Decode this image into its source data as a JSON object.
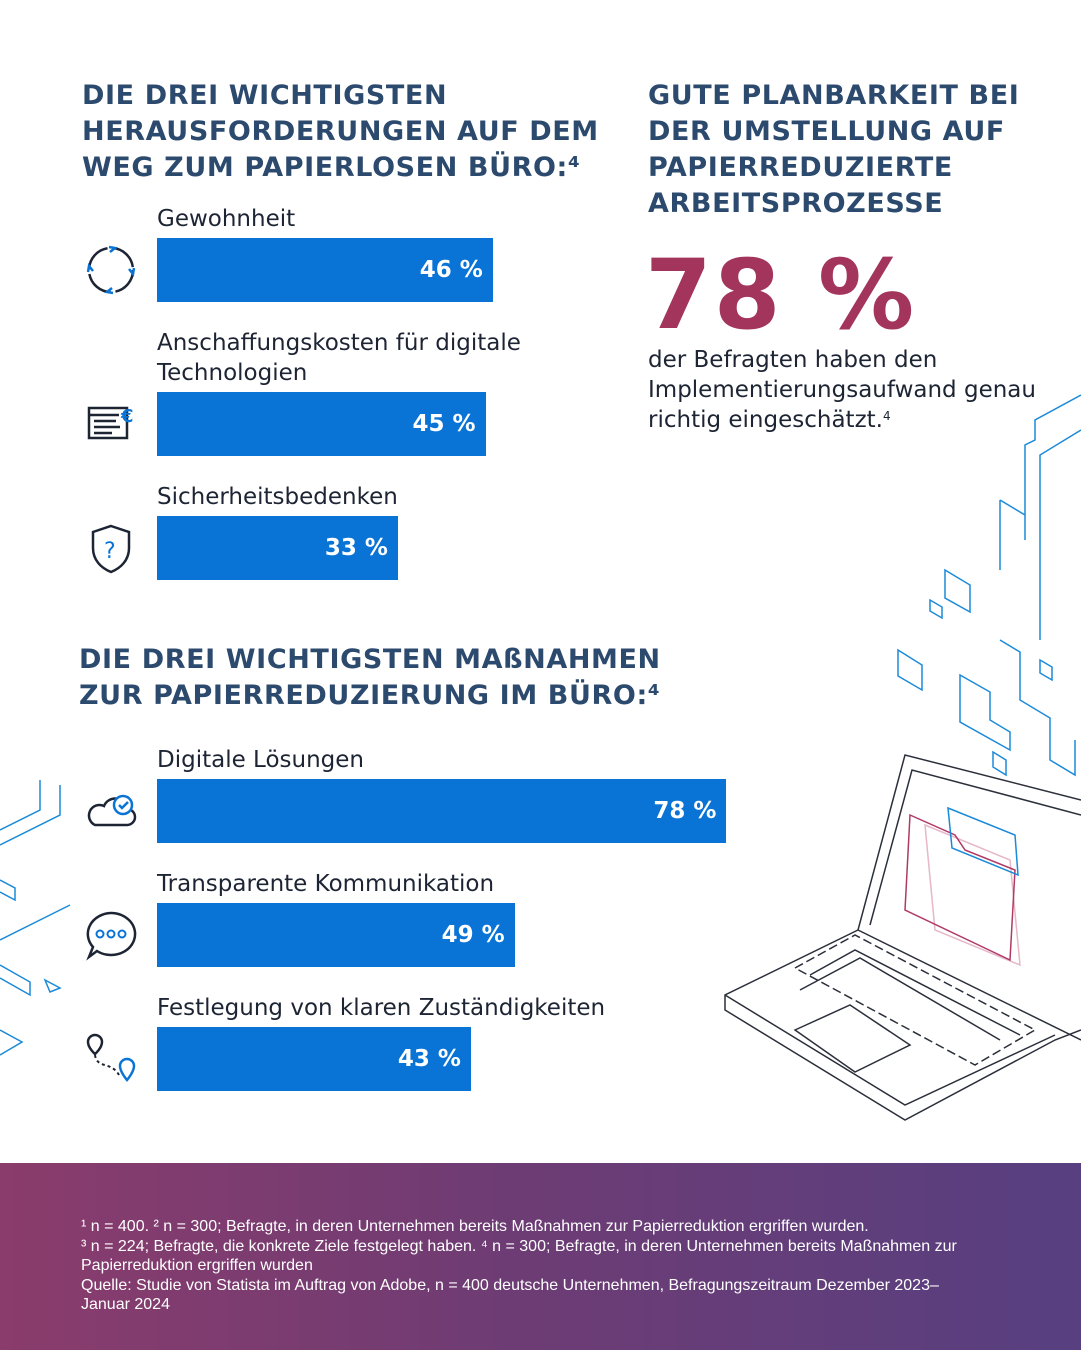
{
  "colors": {
    "heading": "#2c4a6e",
    "bar": "#0a74d6",
    "highlight": "#a3345c",
    "footer_start": "#8a3c6c",
    "footer_end": "#573f80"
  },
  "left_heading": "DIE DREI WICHTIGSTEN HERAUSFORDERUNGEN AUF DEM WEG ZUM PAPIERLOSEN BÜRO:⁴",
  "right_heading": "GUTE PLANBARKEIT BEI DER UMSTELLUNG AUF PAPIERREDUZIERTE ARBEITSPROZESSE",
  "highlight": {
    "value": "78 %",
    "text": "der Befragten haben den Implementierungsaufwand genau richtig eingeschätzt.",
    "footnote": "4"
  },
  "bottom_heading": "DIE DREI WICHTIGSTEN MAßNAHMEN ZUR PAPIERREDUZIERUNG IM BÜRO:⁴",
  "chart_data": [
    {
      "type": "bar",
      "orientation": "horizontal",
      "unit": "%",
      "categories": [
        "Gewohnheit",
        "Anschaffungskosten für digitale Technologien",
        "Sicherheitsbedenken"
      ],
      "values": [
        46,
        45,
        33
      ],
      "labels": [
        "46 %",
        "45 %",
        "33 %"
      ],
      "icons": [
        "cycle-arrows-icon",
        "invoice-euro-icon",
        "shield-question-icon"
      ]
    },
    {
      "type": "bar",
      "orientation": "horizontal",
      "unit": "%",
      "categories": [
        "Digitale Lösungen",
        "Transparente Kommunikation",
        "Festlegung von klaren Zuständigkeiten"
      ],
      "values": [
        78,
        49,
        43
      ],
      "labels": [
        "78 %",
        "49 %",
        "43 %"
      ],
      "icons": [
        "cloud-check-icon",
        "chat-bubble-icon",
        "route-pins-icon"
      ]
    }
  ],
  "footer": {
    "lines": [
      "¹ n = 400. ² n = 300; Befragte, in deren Unternehmen bereits Maßnahmen zur Papierreduktion ergriffen wurden.",
      "³ n = 224; Befragte, die konkrete Ziele festgelegt haben. ⁴ n = 300; Befragte, in deren Unternehmen bereits Maßnahmen zur Papierreduktion ergriffen wurden",
      "Quelle: Studie von Statista im Auftrag von Adobe, n = 400 deutsche Unternehmen, Befragungszeitraum Dezember 2023–Januar 2024"
    ]
  }
}
